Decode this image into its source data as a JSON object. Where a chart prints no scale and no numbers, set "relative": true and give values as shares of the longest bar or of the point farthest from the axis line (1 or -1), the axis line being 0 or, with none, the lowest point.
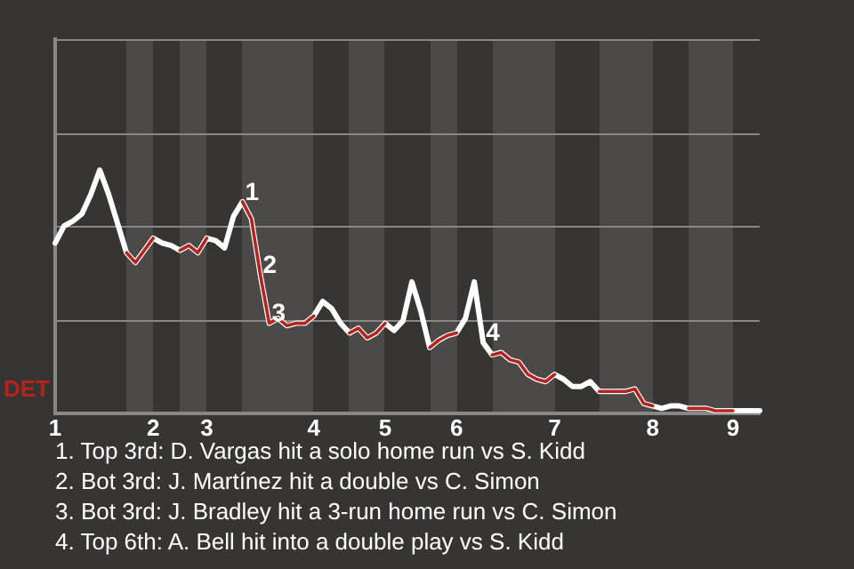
{
  "chart_data": {
    "type": "line",
    "ylabel": "DET",
    "relative": true,
    "ref_lines": [
      {
        "axis": "y",
        "value": 0.38,
        "color": "#8a8886"
      },
      {
        "axis": "y",
        "value": 0.77,
        "color": "#8a8886"
      },
      {
        "axis": "y",
        "value": 1.15,
        "color": "#8a8886"
      }
    ],
    "marker": "none",
    "line_style": "solid",
    "categories": [
      "1",
      null,
      null,
      null,
      null,
      null,
      null,
      null,
      null,
      null,
      null,
      "2",
      null,
      null,
      null,
      null,
      null,
      "3",
      null,
      null,
      null,
      null,
      null,
      null,
      null,
      null,
      null,
      null,
      null,
      "4",
      null,
      null,
      null,
      null,
      null,
      null,
      null,
      "5",
      null,
      null,
      null,
      null,
      null,
      null,
      null,
      "6",
      null,
      null,
      null,
      null,
      null,
      null,
      null,
      null,
      null,
      null,
      "7",
      null,
      null,
      null,
      null,
      null,
      null,
      null,
      null,
      null,
      null,
      "8",
      null,
      null,
      null,
      null,
      null,
      null,
      null,
      null,
      "9",
      null,
      null,
      null
    ],
    "series": [
      {
        "color": "#ffffff",
        "values": [
          0.7,
          0.77,
          0.79,
          0.82,
          0.9,
          1.0,
          0.9,
          0.78,
          0.66,
          0.62,
          0.67,
          0.72,
          0.7,
          0.69,
          0.67,
          0.69,
          0.66,
          0.72,
          0.71,
          0.68,
          0.81,
          0.87,
          0.8,
          0.57,
          0.37,
          0.39,
          0.36,
          0.37,
          0.37,
          0.4,
          0.46,
          0.43,
          0.37,
          0.33,
          0.35,
          0.31,
          0.33,
          0.37,
          0.34,
          0.38,
          0.54,
          0.42,
          0.27,
          0.3,
          0.32,
          0.33,
          0.39,
          0.54,
          0.29,
          0.24,
          0.25,
          0.22,
          0.21,
          0.16,
          0.14,
          0.13,
          0.16,
          0.14,
          0.11,
          0.11,
          0.13,
          0.09,
          0.09,
          0.09,
          0.09,
          0.1,
          0.04,
          0.03,
          0.02,
          0.03,
          0.03,
          0.02,
          0.02,
          0.02,
          0.01,
          0.01,
          0.01,
          0.01,
          0.01,
          0.01
        ]
      },
      {
        "color": "#b5231f",
        "values": [
          null,
          null,
          null,
          null,
          null,
          null,
          null,
          null,
          0.66,
          0.62,
          0.67,
          0.72,
          null,
          null,
          0.67,
          0.69,
          0.66,
          0.72,
          null,
          null,
          null,
          0.87,
          0.8,
          0.57,
          0.37,
          0.39,
          0.36,
          0.37,
          0.37,
          0.4,
          null,
          null,
          null,
          0.33,
          0.35,
          0.31,
          0.33,
          0.37,
          null,
          null,
          null,
          null,
          0.27,
          0.3,
          0.32,
          0.33,
          null,
          null,
          null,
          0.24,
          0.25,
          0.22,
          0.21,
          0.16,
          0.14,
          0.13,
          0.16,
          null,
          null,
          null,
          null,
          0.09,
          0.09,
          0.09,
          0.09,
          0.1,
          0.04,
          0.03,
          null,
          null,
          null,
          0.02,
          0.02,
          0.02,
          0.01,
          0.01,
          0.01,
          null,
          null,
          null
        ]
      }
    ],
    "annotations": [
      {
        "text": "1",
        "y": 0.87
      },
      {
        "text": "2",
        "y": 0.57
      },
      {
        "text": "3",
        "y": 0.37
      },
      {
        "text": "4",
        "y": 0.29
      },
      "1. Top 3rd: D. Vargas hit a solo home run vs S. Kidd",
      "2. Bot 3rd: J. Martínez hit a double vs C. Simon",
      "3. Bot 3rd: J. Bradley hit a 3-run home run vs C. Simon",
      "4. Top 6th: A. Bell hit into a double play vs S. Kidd"
    ]
  }
}
